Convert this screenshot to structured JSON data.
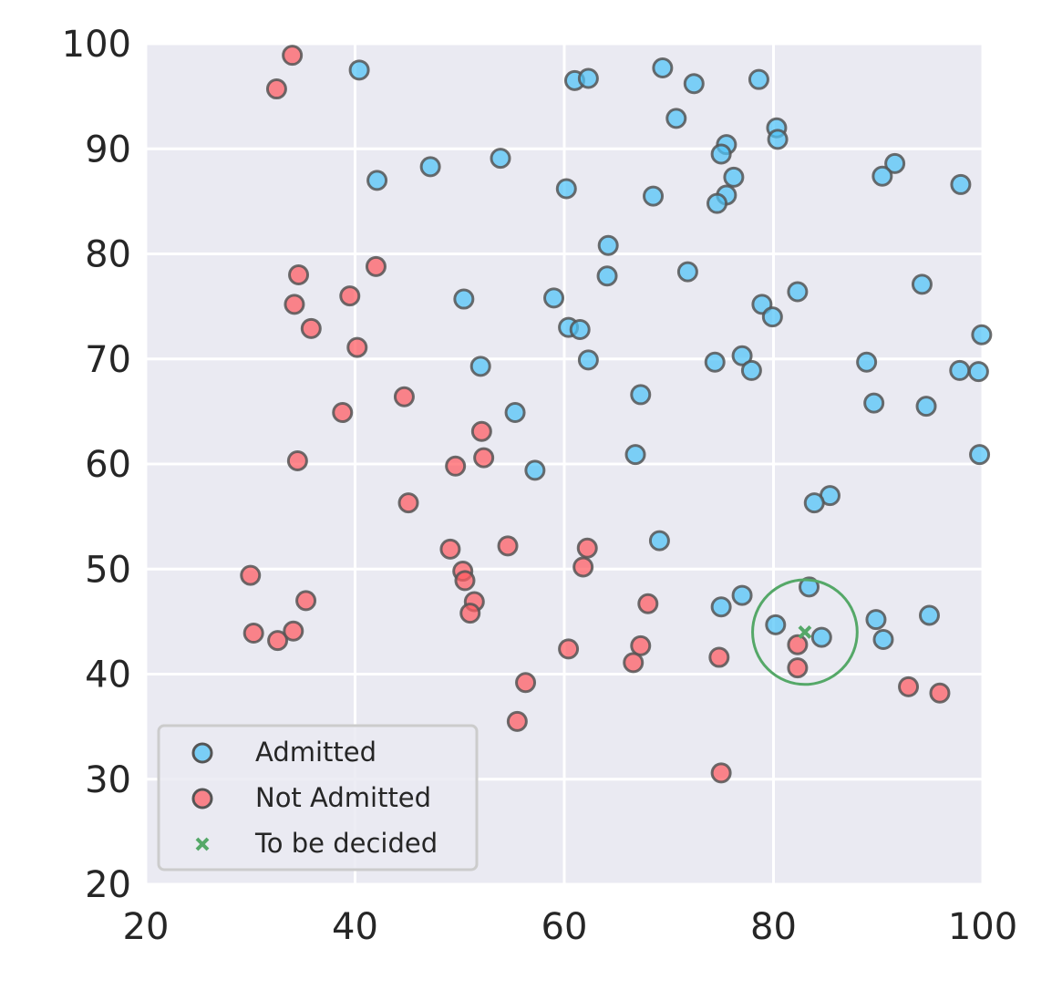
{
  "chart_data": {
    "type": "scatter",
    "title": "",
    "xlabel": "",
    "ylabel": "",
    "xlim": [
      20,
      100
    ],
    "ylim": [
      20,
      100
    ],
    "x_ticks": [
      20,
      40,
      60,
      80,
      100
    ],
    "y_ticks": [
      20,
      30,
      40,
      50,
      60,
      70,
      80,
      90,
      100
    ],
    "x_tick_labels": [
      "20",
      "40",
      "60",
      "80",
      "100"
    ],
    "y_tick_labels": [
      "20",
      "30",
      "40",
      "50",
      "60",
      "70",
      "80",
      "90",
      "100"
    ],
    "grid": true,
    "legend_position": "lower-left",
    "colors": {
      "plot_background": "#eaeaf2",
      "grid": "#ffffff",
      "admitted": "#4fc3f7",
      "not_admitted": "#ff5a5f",
      "to_be_decided": "#55a868",
      "marker_edge": "#555555"
    },
    "series": [
      {
        "name": "Admitted",
        "marker": "circle",
        "points": [
          [
            40.4,
            97.5
          ],
          [
            61.0,
            96.5
          ],
          [
            62.3,
            96.7
          ],
          [
            69.4,
            97.7
          ],
          [
            72.4,
            96.2
          ],
          [
            78.6,
            96.6
          ],
          [
            70.7,
            92.9
          ],
          [
            80.3,
            92.0
          ],
          [
            80.4,
            90.9
          ],
          [
            75.5,
            90.4
          ],
          [
            75.0,
            89.5
          ],
          [
            76.2,
            87.3
          ],
          [
            91.6,
            88.6
          ],
          [
            90.4,
            87.4
          ],
          [
            97.9,
            86.6
          ],
          [
            42.1,
            87.0
          ],
          [
            47.2,
            88.3
          ],
          [
            53.9,
            89.1
          ],
          [
            60.2,
            86.2
          ],
          [
            68.5,
            85.5
          ],
          [
            75.5,
            85.6
          ],
          [
            74.6,
            84.8
          ],
          [
            64.2,
            80.8
          ],
          [
            64.1,
            77.9
          ],
          [
            71.8,
            78.3
          ],
          [
            50.4,
            75.7
          ],
          [
            59.0,
            75.8
          ],
          [
            60.4,
            73.0
          ],
          [
            61.5,
            72.8
          ],
          [
            62.3,
            69.9
          ],
          [
            52.0,
            69.3
          ],
          [
            78.9,
            75.2
          ],
          [
            82.3,
            76.4
          ],
          [
            79.9,
            74.0
          ],
          [
            94.2,
            77.1
          ],
          [
            77.0,
            70.3
          ],
          [
            74.4,
            69.7
          ],
          [
            77.9,
            68.9
          ],
          [
            88.9,
            69.7
          ],
          [
            67.3,
            66.6
          ],
          [
            55.3,
            64.9
          ],
          [
            89.6,
            65.8
          ],
          [
            94.6,
            65.5
          ],
          [
            97.8,
            68.9
          ],
          [
            99.6,
            68.8
          ],
          [
            99.9,
            72.3
          ],
          [
            99.7,
            60.9
          ],
          [
            66.8,
            60.9
          ],
          [
            57.2,
            59.4
          ],
          [
            85.4,
            57.0
          ],
          [
            83.9,
            56.3
          ],
          [
            69.1,
            52.7
          ],
          [
            83.4,
            48.3
          ],
          [
            77.0,
            47.5
          ],
          [
            75.0,
            46.4
          ],
          [
            80.2,
            44.7
          ],
          [
            84.6,
            43.5
          ],
          [
            89.8,
            45.2
          ],
          [
            90.5,
            43.3
          ],
          [
            94.9,
            45.6
          ]
        ]
      },
      {
        "name": "Not Admitted",
        "marker": "circle",
        "points": [
          [
            34.0,
            98.9
          ],
          [
            32.5,
            95.7
          ],
          [
            34.6,
            78.0
          ],
          [
            42.0,
            78.8
          ],
          [
            34.2,
            75.2
          ],
          [
            35.8,
            72.9
          ],
          [
            39.5,
            76.0
          ],
          [
            40.2,
            71.1
          ],
          [
            44.7,
            66.4
          ],
          [
            38.8,
            64.9
          ],
          [
            34.5,
            60.3
          ],
          [
            52.1,
            63.1
          ],
          [
            52.3,
            60.6
          ],
          [
            49.6,
            59.8
          ],
          [
            45.1,
            56.3
          ],
          [
            49.1,
            51.9
          ],
          [
            54.6,
            52.2
          ],
          [
            62.2,
            52.0
          ],
          [
            61.8,
            50.2
          ],
          [
            50.3,
            49.8
          ],
          [
            50.5,
            48.9
          ],
          [
            51.4,
            46.9
          ],
          [
            51.0,
            45.8
          ],
          [
            30.0,
            49.4
          ],
          [
            30.3,
            43.9
          ],
          [
            32.6,
            43.2
          ],
          [
            34.1,
            44.1
          ],
          [
            35.3,
            47.0
          ],
          [
            60.4,
            42.4
          ],
          [
            67.3,
            42.7
          ],
          [
            66.6,
            41.1
          ],
          [
            68.0,
            46.7
          ],
          [
            74.8,
            41.6
          ],
          [
            82.3,
            42.8
          ],
          [
            82.3,
            40.6
          ],
          [
            56.3,
            39.2
          ],
          [
            55.5,
            35.5
          ],
          [
            92.9,
            38.8
          ],
          [
            95.9,
            38.2
          ],
          [
            75.0,
            30.6
          ]
        ]
      },
      {
        "name": "To be decided",
        "marker": "x",
        "points": [
          [
            83.0,
            44.0
          ]
        ]
      }
    ],
    "highlight_circle": {
      "center": [
        83.0,
        44.0
      ],
      "radius_x_units": 5.0
    }
  }
}
